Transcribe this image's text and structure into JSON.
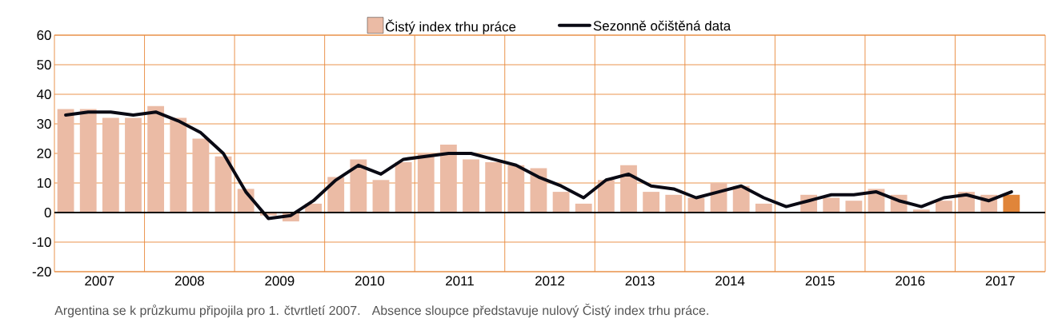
{
  "chart_data": {
    "type": "bar",
    "x": [
      2007.125,
      2007.375,
      2007.625,
      2007.875,
      2008.125,
      2008.375,
      2008.625,
      2008.875,
      2009.125,
      2009.375,
      2009.625,
      2009.875,
      2010.125,
      2010.375,
      2010.625,
      2010.875,
      2011.125,
      2011.375,
      2011.625,
      2011.875,
      2012.125,
      2012.375,
      2012.625,
      2012.875,
      2013.125,
      2013.375,
      2013.625,
      2013.875,
      2014.125,
      2014.375,
      2014.625,
      2014.875,
      2015.125,
      2015.375,
      2015.625,
      2015.875,
      2016.125,
      2016.375,
      2016.625,
      2016.875,
      2017.125,
      2017.375,
      2017.625
    ],
    "series": [
      {
        "name": "Čistý index trhu práce",
        "color": "#ebbba5",
        "values": [
          35,
          35,
          32,
          32,
          36,
          32,
          25,
          19,
          8,
          -1,
          -3,
          3,
          12,
          18,
          11,
          17,
          20,
          23,
          18,
          17,
          16,
          15,
          7,
          3,
          11,
          16,
          7,
          6,
          5,
          10,
          9,
          3,
          0,
          6,
          5,
          4,
          8,
          6,
          1,
          4,
          7,
          6,
          6
        ],
        "colors": [
          "#ebbba5",
          "#ebbba5",
          "#ebbba5",
          "#ebbba5",
          "#ebbba5",
          "#ebbba5",
          "#ebbba5",
          "#ebbba5",
          "#ebbba5",
          "#ebbba5",
          "#ebbba5",
          "#ebbba5",
          "#ebbba5",
          "#ebbba5",
          "#ebbba5",
          "#ebbba5",
          "#ebbba5",
          "#ebbba5",
          "#ebbba5",
          "#ebbba5",
          "#ebbba5",
          "#ebbba5",
          "#ebbba5",
          "#ebbba5",
          "#ebbba5",
          "#ebbba5",
          "#ebbba5",
          "#ebbba5",
          "#ebbba5",
          "#ebbba5",
          "#ebbba5",
          "#ebbba5",
          "#ebbba5",
          "#ebbba5",
          "#ebbba5",
          "#ebbba5",
          "#ebbba5",
          "#ebbba5",
          "#ebbba5",
          "#ebbba5",
          "#ebbba5",
          "#ebbba5",
          "#e0853a"
        ]
      },
      {
        "name": "Sezonně očištěná data",
        "type": "line",
        "color": "#0a0a14",
        "values": [
          33,
          34,
          34,
          33,
          34,
          31,
          27,
          20,
          7,
          -2,
          -1,
          4,
          11,
          16,
          13,
          18,
          19,
          20,
          20,
          18,
          16,
          12,
          9,
          5,
          11,
          13,
          9,
          8,
          5,
          7,
          9,
          5,
          2,
          4,
          6,
          6,
          7,
          4,
          2,
          5,
          6,
          4,
          7
        ]
      }
    ],
    "xlim": [
      2007,
      2018
    ],
    "xticks": [
      {
        "value": 2007.5,
        "label": "2007"
      },
      {
        "value": 2008,
        "label": null
      },
      {
        "value": 2008.5,
        "label": "2008"
      },
      {
        "value": 2009,
        "label": null
      },
      {
        "value": 2009.5,
        "label": "2009"
      },
      {
        "value": 2010,
        "label": null
      },
      {
        "value": 2010.5,
        "label": "2010"
      },
      {
        "value": 2011,
        "label": null
      },
      {
        "value": 2011.5,
        "label": "2011"
      },
      {
        "value": 2012,
        "label": null
      },
      {
        "value": 2012.5,
        "label": "2012"
      },
      {
        "value": 2013,
        "label": null
      },
      {
        "value": 2013.5,
        "label": "2013"
      },
      {
        "value": 2014,
        "label": null
      },
      {
        "value": 2014.5,
        "label": "2014"
      },
      {
        "value": 2015,
        "label": null
      },
      {
        "value": 2015.5,
        "label": "2015"
      },
      {
        "value": 2016,
        "label": null
      },
      {
        "value": 2016.5,
        "label": "2016"
      },
      {
        "value": 2017,
        "label": null
      },
      {
        "value": 2017.5,
        "label": "2017"
      }
    ],
    "ylim": [
      -20,
      60
    ],
    "yticks": [
      -20,
      -10,
      0,
      10,
      20,
      30,
      40,
      50,
      60
    ],
    "grid": true,
    "legend": "top",
    "ref_lines": [
      {
        "axis": "y",
        "value": 0,
        "color": "#000000"
      }
    ],
    "annotations": [
      "Argentina se k průzkumu připojila pro 1. čtvrtletí 2007.",
      "Absence sloupce představuje nulový Čistý index trhu práce."
    ]
  }
}
